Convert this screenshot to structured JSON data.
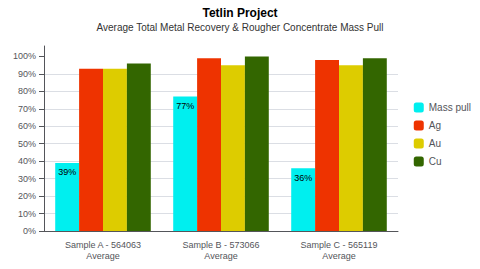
{
  "chart_data": {
    "type": "bar",
    "title": "Tetlin Project",
    "subtitle": "Average Total Metal Recovery & Rougher Concentrate Mass Pull",
    "categories": [
      "Sample A - 564063\nAverage",
      "Sample B - 573066\nAverage",
      "Sample C - 565119\nAverage"
    ],
    "series": [
      {
        "name": "Mass pull",
        "color": "#00EFEF",
        "values": [
          39,
          77,
          36
        ],
        "value_labels": [
          "39%",
          "77%",
          "36%"
        ]
      },
      {
        "name": "Ag",
        "color": "#EE3300",
        "values": [
          93,
          99,
          98
        ]
      },
      {
        "name": "Au",
        "color": "#DDCC00",
        "values": [
          93,
          95,
          95
        ]
      },
      {
        "name": "Cu",
        "color": "#336600",
        "values": [
          96,
          100,
          99
        ]
      }
    ],
    "ylim": [
      0,
      106
    ],
    "yticks": [
      {
        "value": 0,
        "label": "0%"
      },
      {
        "value": 10,
        "label": "10%"
      },
      {
        "value": 20,
        "label": "20%"
      },
      {
        "value": 30,
        "label": "30%"
      },
      {
        "value": 40,
        "label": "40%"
      },
      {
        "value": 50,
        "label": "50%"
      },
      {
        "value": 60,
        "label": "60%"
      },
      {
        "value": 70,
        "label": "70%"
      },
      {
        "value": 80,
        "label": "80%"
      },
      {
        "value": 90,
        "label": "90%"
      },
      {
        "value": 100,
        "label": "100%"
      }
    ],
    "grid": true,
    "legend": "right"
  }
}
